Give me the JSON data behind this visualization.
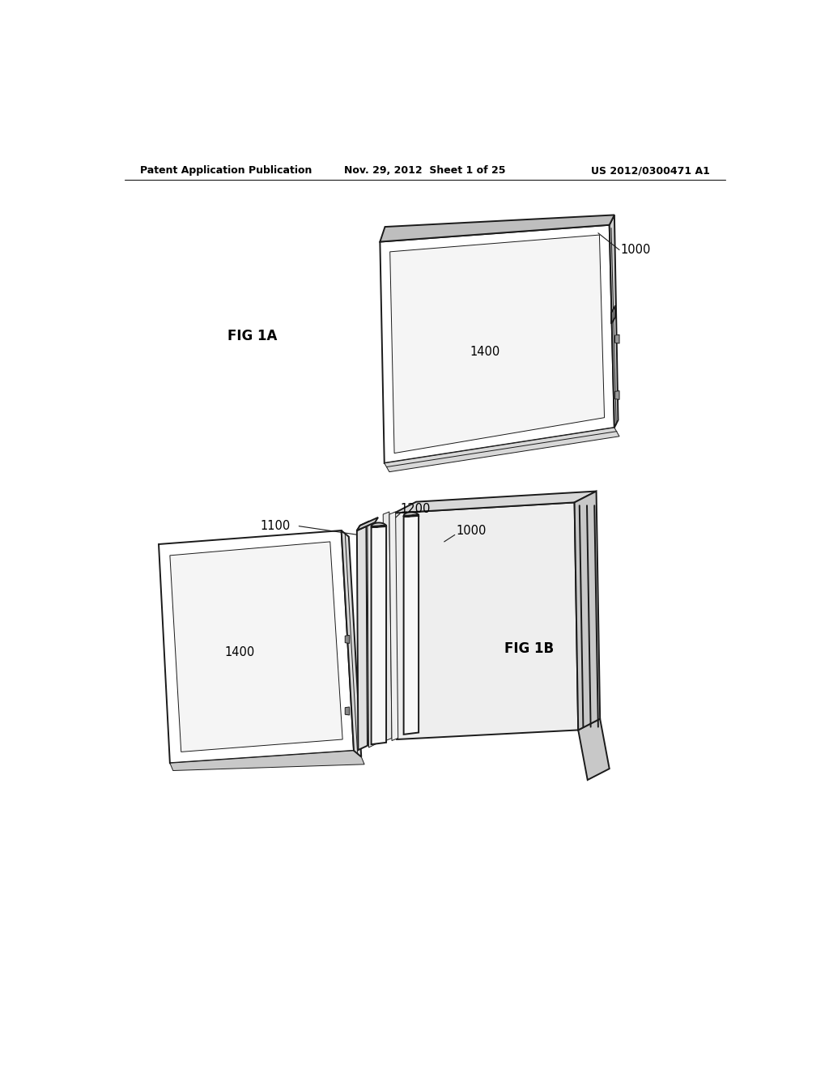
{
  "background_color": "#ffffff",
  "header_left": "Patent Application Publication",
  "header_center": "Nov. 29, 2012  Sheet 1 of 25",
  "header_right": "US 2012/0300471 A1",
  "header_fontsize": 9,
  "fig1a_label": "FIG 1A",
  "fig1b_label": "FIG 1B",
  "label_1000_fig1a": "1000",
  "label_1400_fig1a": "1400",
  "label_1100_fig1b": "1100",
  "label_1200_fig1b": "1200",
  "label_1000_fig1b": "1000",
  "label_1400_fig1b": "1400",
  "line_color": "#1a1a1a",
  "lw_main": 1.4,
  "lw_thin": 0.7,
  "lw_leader": 0.8,
  "label_fontsize": 10.5,
  "fig_label_fontsize": 12
}
